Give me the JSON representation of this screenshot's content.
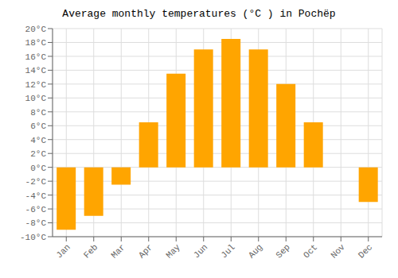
{
  "chart_data": {
    "type": "bar",
    "title": "Average monthly temperatures (°C ) in Pochëp",
    "categories": [
      "Jan",
      "Feb",
      "Mar",
      "Apr",
      "May",
      "Jun",
      "Jul",
      "Aug",
      "Sep",
      "Oct",
      "Nov",
      "Dec"
    ],
    "values": [
      -9,
      -7,
      -2.5,
      6.5,
      13.5,
      17,
      18.5,
      17,
      12,
      6.5,
      0,
      -5
    ],
    "color": "#FFA500",
    "ylim": [
      -10,
      20
    ],
    "yticks": [
      {
        "value": -10,
        "label": "-10°C"
      },
      {
        "value": -8,
        "label": "-8°C"
      },
      {
        "value": -6,
        "label": "-6°C"
      },
      {
        "value": -4,
        "label": "-4°C"
      },
      {
        "value": -2,
        "label": "-2°C"
      },
      {
        "value": 0,
        "label": "0°C"
      },
      {
        "value": 2,
        "label": "2°C"
      },
      {
        "value": 4,
        "label": "4°C"
      },
      {
        "value": 6,
        "label": "6°C"
      },
      {
        "value": 8,
        "label": "8°C"
      },
      {
        "value": 10,
        "label": "10°C"
      },
      {
        "value": 12,
        "label": "12°C"
      },
      {
        "value": 14,
        "label": "14°C"
      },
      {
        "value": 16,
        "label": "16°C"
      },
      {
        "value": 18,
        "label": "18°C"
      },
      {
        "value": 20,
        "label": "20°C"
      }
    ],
    "grid": true
  }
}
